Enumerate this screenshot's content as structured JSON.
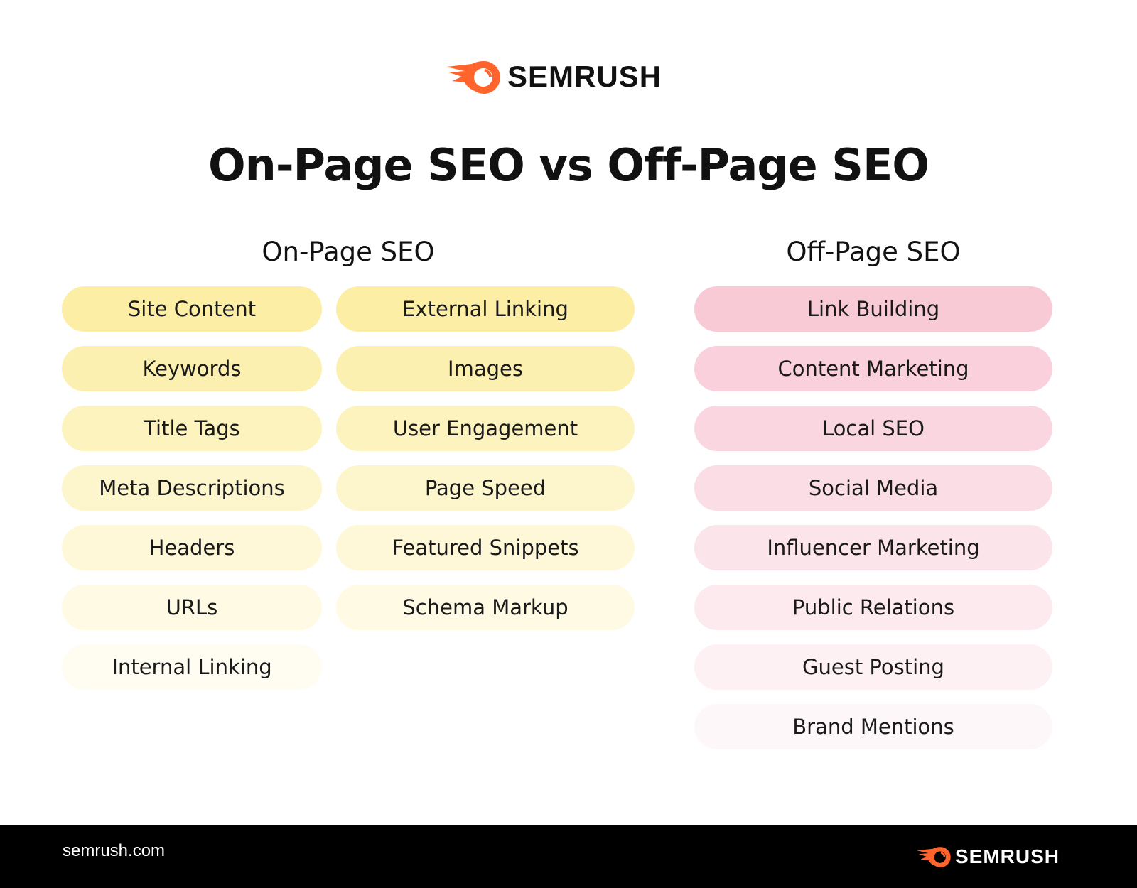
{
  "brand": {
    "name": "SEMRUSH",
    "logo_icon": "semrush-flame-icon",
    "accent": "#FF642D"
  },
  "title": "On-Page SEO vs Off-Page SEO",
  "on_page": {
    "heading": "On-Page SEO",
    "color": "#FCEEA4",
    "column1": [
      "Site Content",
      "Keywords",
      "Title Tags",
      "Meta Descriptions",
      "Headers",
      "URLs",
      "Internal Linking"
    ],
    "column2": [
      "External Linking",
      "Images",
      "User Engagement",
      "Page Speed",
      "Featured Snippets",
      "Schema Markup"
    ]
  },
  "off_page": {
    "heading": "Off-Page SEO",
    "color": "#F8CAD6",
    "items": [
      "Link Building",
      "Content Marketing",
      "Local SEO",
      "Social Media",
      "Influencer Marketing",
      "Public Relations",
      "Guest Posting",
      "Brand Mentions"
    ]
  },
  "footer": {
    "url": "semrush.com",
    "brand": "SEMRUSH"
  }
}
